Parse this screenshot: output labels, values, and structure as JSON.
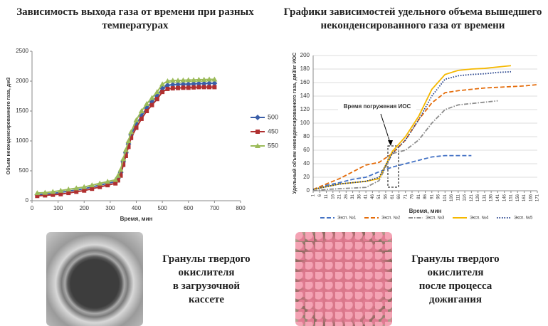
{
  "chart_data": [
    {
      "type": "line",
      "title": "Зависимость выхода газа от времени при разных температурах",
      "xlabel": "Время, мин",
      "ylabel": "Объем неконденсированного газа, дм3",
      "x": [
        20,
        50,
        80,
        110,
        140,
        170,
        200,
        230,
        260,
        290,
        320,
        330,
        340,
        350,
        360,
        370,
        380,
        400,
        420,
        440,
        460,
        480,
        500,
        520,
        540,
        560,
        580,
        600,
        620,
        640,
        660,
        680,
        700
      ],
      "xlim": [
        0,
        800
      ],
      "xticks": [
        0,
        100,
        200,
        300,
        400,
        500,
        600,
        700,
        800
      ],
      "ylim": [
        0,
        2500
      ],
      "yticks": [
        0,
        500,
        1000,
        1500,
        2000,
        2500
      ],
      "grid": false,
      "legend": "right",
      "series": [
        {
          "name": "500",
          "color": "#3a5ea8",
          "marker": "diamond",
          "style": "solid",
          "values": [
            100,
            110,
            120,
            140,
            160,
            180,
            200,
            230,
            260,
            290,
            320,
            380,
            470,
            650,
            800,
            950,
            1100,
            1280,
            1420,
            1550,
            1650,
            1750,
            1880,
            1930,
            1940,
            1945,
            1950,
            1950,
            1955,
            1960,
            1960,
            1965,
            1965
          ]
        },
        {
          "name": "450",
          "color": "#b03030",
          "marker": "square",
          "style": "solid",
          "values": [
            80,
            90,
            100,
            110,
            130,
            150,
            170,
            200,
            230,
            260,
            290,
            340,
            420,
            600,
            750,
            900,
            1050,
            1220,
            1370,
            1500,
            1600,
            1700,
            1820,
            1870,
            1880,
            1885,
            1890,
            1890,
            1895,
            1900,
            1900,
            1900,
            1900
          ]
        },
        {
          "name": "550",
          "color": "#9bbb59",
          "marker": "triangle",
          "style": "solid",
          "values": [
            130,
            135,
            150,
            170,
            190,
            210,
            230,
            260,
            290,
            320,
            350,
            420,
            520,
            700,
            850,
            1000,
            1150,
            1350,
            1500,
            1620,
            1720,
            1820,
            1950,
            2000,
            2010,
            2010,
            2015,
            2020,
            2020,
            2025,
            2025,
            2030,
            2030
          ]
        }
      ]
    },
    {
      "type": "line",
      "title": "Графики зависимостей удельного объема вышедшего неконденсированного газа от времени",
      "xlabel": "Время, мин",
      "ylabel": "Удельный объем неконденсированного газа, дм3/кг ИОС",
      "annotation": "Время погружения ИОС",
      "x": [
        1,
        11,
        21,
        31,
        41,
        51,
        61,
        71,
        81,
        91,
        101,
        111,
        121,
        131,
        141,
        151,
        161,
        171
      ],
      "xlim": [
        1,
        171
      ],
      "xticks": [
        1,
        6,
        11,
        16,
        21,
        26,
        31,
        36,
        41,
        46,
        51,
        56,
        61,
        66,
        71,
        76,
        81,
        86,
        91,
        96,
        101,
        106,
        111,
        116,
        121,
        126,
        131,
        136,
        141,
        146,
        151,
        156,
        161,
        166,
        171
      ],
      "ylim": [
        0,
        200
      ],
      "yticks": [
        0,
        20,
        40,
        60,
        80,
        100,
        120,
        140,
        160,
        180,
        200
      ],
      "grid": true,
      "legend": "bottom",
      "series": [
        {
          "name": "Эксп. №1",
          "color": "#4472c4",
          "style": "dashed",
          "values": [
            2,
            8,
            12,
            17,
            20,
            28,
            35,
            40,
            45,
            50,
            52,
            52,
            52,
            null,
            null,
            null,
            null,
            null
          ]
        },
        {
          "name": "Эксп. №2",
          "color": "#e46c0a",
          "style": "dashed",
          "values": [
            2,
            10,
            18,
            28,
            38,
            42,
            55,
            75,
            105,
            130,
            145,
            148,
            150,
            152,
            153,
            154,
            155,
            157
          ]
        },
        {
          "name": "Эксп. №3",
          "color": "#8c8c8c",
          "style": "dashdot",
          "values": [
            0,
            2,
            3,
            4,
            5,
            15,
            55,
            60,
            75,
            100,
            120,
            127,
            129,
            131,
            133,
            null,
            null,
            null
          ]
        },
        {
          "name": "Эксп. №4",
          "color": "#f5b800",
          "style": "solid",
          "values": [
            2,
            6,
            10,
            12,
            14,
            18,
            58,
            80,
            110,
            150,
            172,
            178,
            180,
            181,
            183,
            185,
            null,
            null
          ]
        },
        {
          "name": "Эксп. №5",
          "color": "#1f3c88",
          "style": "dotted",
          "values": [
            2,
            6,
            10,
            12,
            14,
            20,
            55,
            75,
            105,
            140,
            165,
            170,
            172,
            173,
            175,
            176,
            null,
            null
          ]
        }
      ]
    }
  ],
  "photos": [
    {
      "caption": [
        "Гранулы твердого",
        "окислителя",
        "в загрузочной",
        "кассете"
      ]
    },
    {
      "caption": [
        "Гранулы твердого",
        "окислителя",
        "после процесса",
        "дожигания"
      ]
    }
  ]
}
